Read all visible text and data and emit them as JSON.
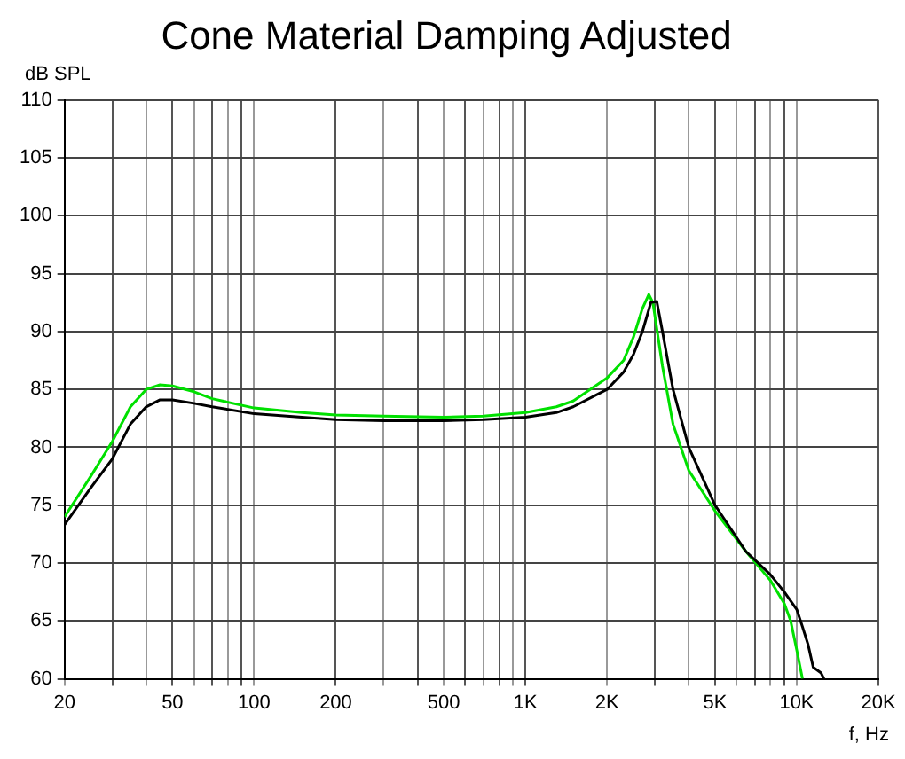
{
  "chart_data": {
    "type": "line",
    "title": "Cone Material Damping Adjusted",
    "xlabel": "f, Hz",
    "ylabel": "dB SPL",
    "log": "x",
    "grid": true,
    "legend": false,
    "marker": "none",
    "line_style": "solid",
    "xlim": [
      20,
      20000
    ],
    "ylim": [
      60,
      110
    ],
    "xticks": [
      {
        "value": 20,
        "label": "20"
      },
      {
        "value": 30,
        "label": null
      },
      {
        "value": 40,
        "label": null
      },
      {
        "value": 50,
        "label": "50"
      },
      {
        "value": 60,
        "label": null
      },
      {
        "value": 70,
        "label": null
      },
      {
        "value": 80,
        "label": null
      },
      {
        "value": 90,
        "label": null
      },
      {
        "value": 100,
        "label": "100"
      },
      {
        "value": 200,
        "label": "200"
      },
      {
        "value": 300,
        "label": null
      },
      {
        "value": 400,
        "label": null
      },
      {
        "value": 500,
        "label": "500"
      },
      {
        "value": 600,
        "label": null
      },
      {
        "value": 700,
        "label": null
      },
      {
        "value": 800,
        "label": null
      },
      {
        "value": 900,
        "label": null
      },
      {
        "value": 1000,
        "label": "1K"
      },
      {
        "value": 2000,
        "label": "2K"
      },
      {
        "value": 3000,
        "label": null
      },
      {
        "value": 4000,
        "label": null
      },
      {
        "value": 5000,
        "label": "5K"
      },
      {
        "value": 6000,
        "label": null
      },
      {
        "value": 7000,
        "label": null
      },
      {
        "value": 8000,
        "label": null
      },
      {
        "value": 9000,
        "label": null
      },
      {
        "value": 10000,
        "label": "10K"
      },
      {
        "value": 20000,
        "label": "20K"
      }
    ],
    "yticks": [
      60,
      65,
      70,
      75,
      80,
      85,
      90,
      95,
      100,
      105,
      110
    ],
    "series": [
      {
        "color": "#000000",
        "x": [
          20,
          25,
          30,
          35,
          40,
          45,
          50,
          60,
          70,
          100,
          150,
          200,
          300,
          500,
          700,
          1000,
          1300,
          1500,
          2000,
          2300,
          2500,
          2700,
          2900,
          3050,
          3200,
          3500,
          4000,
          5000,
          6500,
          8000,
          9000,
          10000,
          10500,
          11000,
          11500,
          12300,
          12600
        ],
        "values": [
          73.3,
          76.5,
          79,
          82,
          83.5,
          84.1,
          84.1,
          83.8,
          83.5,
          82.9,
          82.6,
          82.4,
          82.3,
          82.3,
          82.4,
          82.6,
          83,
          83.5,
          85,
          86.5,
          88,
          90,
          92.5,
          92.6,
          90,
          85,
          80,
          75,
          71,
          69,
          67.5,
          66,
          64.5,
          63,
          61,
          60.5,
          60
        ]
      },
      {
        "color": "#00e000",
        "x": [
          20,
          25,
          30,
          35,
          40,
          45,
          50,
          60,
          70,
          100,
          150,
          200,
          300,
          500,
          700,
          1000,
          1300,
          1500,
          2000,
          2300,
          2500,
          2700,
          2850,
          2950,
          3200,
          3500,
          4000,
          5000,
          6500,
          8000,
          9000,
          9500,
          10000,
          10500
        ],
        "values": [
          74,
          77.5,
          80.5,
          83.5,
          85,
          85.4,
          85.3,
          84.8,
          84.2,
          83.4,
          83,
          82.8,
          82.7,
          82.6,
          82.7,
          83,
          83.5,
          84,
          86,
          87.5,
          89.5,
          92,
          93.2,
          92.5,
          87,
          82,
          78,
          74.5,
          71,
          68.5,
          66.5,
          65,
          62.5,
          60
        ]
      }
    ]
  }
}
